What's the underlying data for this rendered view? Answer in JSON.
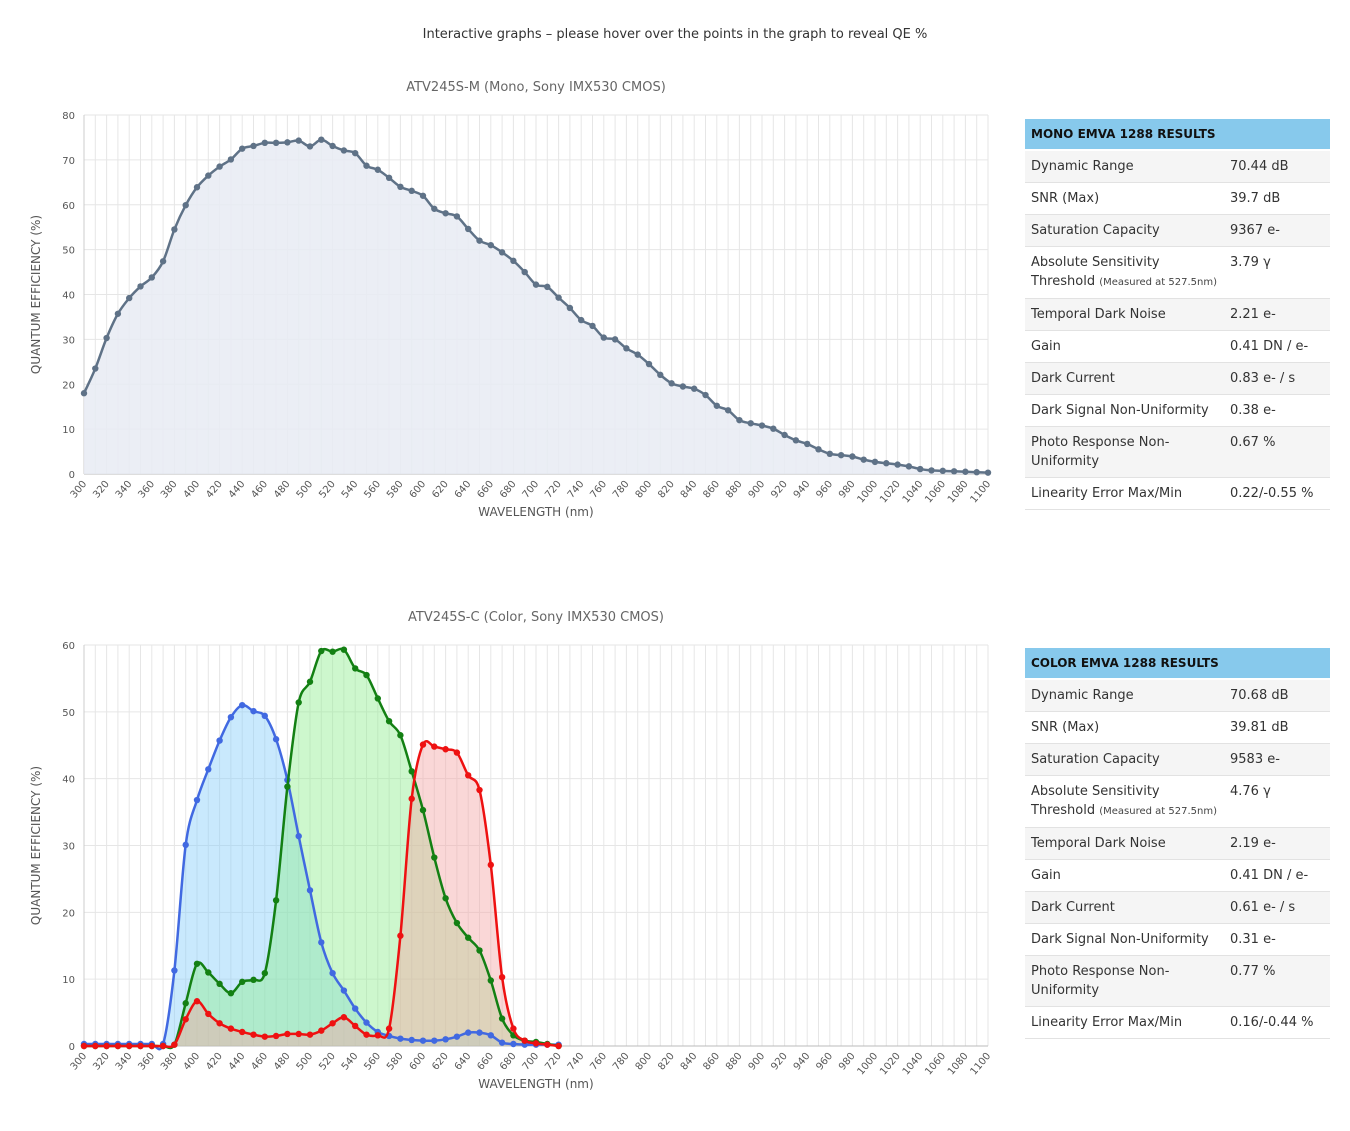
{
  "intro_text": "Interactive graphs – please hover over the points in the graph to reveal QE %",
  "chart_data": [
    {
      "type": "area",
      "title": "ATV245S-M (Mono, Sony IMX530 CMOS)",
      "xlabel": "WAVELENGTH (nm)",
      "ylabel": "QUANTUM EFFICIENCY (%)",
      "xlim": [
        300,
        1100
      ],
      "ylim": [
        0,
        80
      ],
      "yticks": [
        0,
        10,
        20,
        30,
        40,
        50,
        60,
        70,
        80
      ],
      "xticks": [
        "300",
        "320",
        "340",
        "360",
        "380",
        "400",
        "420",
        "440",
        "460",
        "480",
        "500",
        "520",
        "540",
        "560",
        "580",
        "600",
        "620",
        "640",
        "660",
        "680",
        "700",
        "720",
        "740",
        "760",
        "780",
        "800",
        "820",
        "840",
        "860",
        "880",
        "900",
        "920",
        "940",
        "960",
        "980",
        "1000",
        "1020",
        "1040",
        "1060",
        "1080",
        "1100"
      ],
      "grid": true,
      "series": [
        {
          "color": "#5f7287",
          "fill": "#e8ebf3",
          "x": [
            300,
            310,
            320,
            330,
            340,
            350,
            360,
            370,
            380,
            390,
            400,
            410,
            420,
            430,
            440,
            450,
            460,
            470,
            480,
            490,
            500,
            510,
            520,
            530,
            540,
            550,
            560,
            570,
            580,
            590,
            600,
            610,
            620,
            630,
            640,
            650,
            660,
            670,
            680,
            690,
            700,
            710,
            720,
            730,
            740,
            750,
            760,
            770,
            780,
            790,
            800,
            810,
            820,
            830,
            840,
            850,
            860,
            870,
            880,
            890,
            900,
            910,
            920,
            930,
            940,
            950,
            960,
            970,
            980,
            990,
            1000,
            1010,
            1020,
            1030,
            1040,
            1050,
            1060,
            1070,
            1080,
            1090,
            1100
          ],
          "values": [
            18,
            23.5,
            30.3,
            35.7,
            39.2,
            41.8,
            43.8,
            47.4,
            54.5,
            59.9,
            63.9,
            66.5,
            68.5,
            70.1,
            72.5,
            73.1,
            73.8,
            73.8,
            73.9,
            74.3,
            73,
            74.5,
            73.1,
            72.1,
            71.5,
            68.7,
            67.8,
            66,
            64,
            63.1,
            62,
            59.1,
            58.1,
            57.4,
            54.6,
            52,
            51,
            49.4,
            47.5,
            45,
            42.2,
            41.7,
            39.3,
            37,
            34.3,
            33,
            30.4,
            30,
            28,
            26.6,
            24.5,
            22.1,
            20.2,
            19.5,
            19,
            17.6,
            15.2,
            14.2,
            12,
            11.3,
            10.8,
            10.1,
            8.7,
            7.5,
            6.7,
            5.5,
            4.5,
            4.2,
            3.9,
            3.2,
            2.7,
            2.4,
            2.1,
            1.7,
            1.1,
            0.8,
            0.7,
            0.6,
            0.5,
            0.4,
            0.3
          ]
        }
      ]
    },
    {
      "type": "area",
      "title": "ATV245S-C (Color, Sony IMX530 CMOS)",
      "xlabel": "WAVELENGTH (nm)",
      "ylabel": "QUANTUM EFFICIENCY (%)",
      "xlim": [
        300,
        1100
      ],
      "ylim": [
        0,
        60
      ],
      "yticks": [
        0,
        10,
        20,
        30,
        40,
        50,
        60
      ],
      "xticks": [
        "300",
        "320",
        "340",
        "360",
        "380",
        "400",
        "420",
        "440",
        "460",
        "480",
        "500",
        "520",
        "540",
        "560",
        "580",
        "600",
        "620",
        "640",
        "660",
        "680",
        "700",
        "720",
        "740",
        "760",
        "780",
        "800",
        "820",
        "840",
        "860",
        "880",
        "900",
        "920",
        "940",
        "960",
        "980",
        "1000",
        "1020",
        "1040",
        "1060",
        "1080",
        "1100"
      ],
      "grid": true,
      "series": [
        {
          "color": "#4169e1",
          "fill": "#87cefa",
          "x": [
            300,
            310,
            320,
            330,
            340,
            350,
            360,
            370,
            380,
            390,
            400,
            410,
            420,
            430,
            440,
            450,
            460,
            470,
            480,
            490,
            500,
            510,
            520,
            530,
            540,
            550,
            560,
            570,
            580,
            590,
            600,
            610,
            620,
            630,
            640,
            650,
            660,
            670,
            680,
            690,
            700,
            710,
            720
          ],
          "values": [
            0.3,
            0.3,
            0.3,
            0.3,
            0.3,
            0.3,
            0.3,
            0.3,
            11.3,
            30.1,
            36.8,
            41.4,
            45.7,
            49.2,
            51,
            50.1,
            49.4,
            45.9,
            39.8,
            31.4,
            23.3,
            15.5,
            10.9,
            8.3,
            5.6,
            3.5,
            2.1,
            1.5,
            1.1,
            0.9,
            0.8,
            0.8,
            1,
            1.4,
            2,
            2,
            1.6,
            0.5,
            0.3,
            0.2,
            0.2,
            0.2,
            0.2
          ]
        },
        {
          "color": "#138013",
          "fill": "#90ee90",
          "x": [
            300,
            310,
            320,
            330,
            340,
            350,
            360,
            370,
            380,
            390,
            400,
            410,
            420,
            430,
            440,
            450,
            460,
            470,
            480,
            490,
            500,
            510,
            520,
            530,
            540,
            550,
            560,
            570,
            580,
            590,
            600,
            610,
            620,
            630,
            640,
            650,
            660,
            670,
            680,
            690,
            700,
            710,
            720
          ],
          "values": [
            0,
            0,
            0,
            0,
            0,
            0,
            0,
            0,
            0.2,
            6.4,
            12.3,
            11,
            9.3,
            7.9,
            9.6,
            9.9,
            10.9,
            21.8,
            38.8,
            51.4,
            54.5,
            59.1,
            59,
            59.3,
            56.5,
            55.5,
            52,
            48.6,
            46.5,
            41.1,
            35.3,
            28.2,
            22.1,
            18.4,
            16.2,
            14.3,
            9.8,
            4.1,
            1.6,
            0.8,
            0.6,
            0.3,
            0
          ]
        },
        {
          "color": "#ee1111",
          "fill": "#f4a6a6",
          "x": [
            300,
            310,
            320,
            330,
            340,
            350,
            360,
            370,
            380,
            390,
            400,
            410,
            420,
            430,
            440,
            450,
            460,
            470,
            480,
            490,
            500,
            510,
            520,
            530,
            540,
            550,
            560,
            570,
            580,
            590,
            600,
            610,
            620,
            630,
            640,
            650,
            660,
            670,
            680,
            690,
            700,
            710,
            720
          ],
          "values": [
            0,
            0,
            0,
            0,
            0,
            0,
            0,
            0,
            0.2,
            4,
            6.7,
            4.8,
            3.4,
            2.6,
            2.1,
            1.7,
            1.4,
            1.5,
            1.8,
            1.8,
            1.7,
            2.3,
            3.4,
            4.3,
            3,
            1.7,
            1.6,
            2.6,
            16.5,
            37,
            45.1,
            44.8,
            44.4,
            43.9,
            40.5,
            38.3,
            27.1,
            10.3,
            2.6,
            0.8,
            0.4,
            0.2,
            0
          ]
        }
      ]
    }
  ],
  "mono_results": {
    "heading": "MONO EMVA 1288 RESULTS",
    "rows": [
      {
        "label": "Dynamic Range",
        "note": "",
        "value": "70.44 dB"
      },
      {
        "label": "SNR (Max)",
        "note": "",
        "value": "39.7 dB"
      },
      {
        "label": "Saturation Capacity",
        "note": "",
        "value": "9367 e-"
      },
      {
        "label": "Absolute Sensitivity Threshold",
        "note": "(Measured at 527.5nm)",
        "value": "3.79 γ"
      },
      {
        "label": "Temporal Dark Noise",
        "note": "",
        "value": "2.21 e-"
      },
      {
        "label": "Gain",
        "note": "",
        "value": "0.41 DN / e-"
      },
      {
        "label": "Dark Current",
        "note": "",
        "value": "0.83 e- / s"
      },
      {
        "label": "Dark Signal Non-Uniformity",
        "note": "",
        "value": "0.38 e-"
      },
      {
        "label": "Photo Response Non-Uniformity",
        "note": "",
        "value": "0.67 %"
      },
      {
        "label": "Linearity Error Max/Min",
        "note": "",
        "value": "0.22/-0.55 %"
      }
    ]
  },
  "color_results": {
    "heading": "COLOR EMVA 1288 RESULTS",
    "rows": [
      {
        "label": "Dynamic Range",
        "note": "",
        "value": "70.68 dB"
      },
      {
        "label": "SNR (Max)",
        "note": "",
        "value": "39.81 dB"
      },
      {
        "label": "Saturation Capacity",
        "note": "",
        "value": "9583 e-"
      },
      {
        "label": "Absolute Sensitivity Threshold",
        "note": "(Measured at 527.5nm)",
        "value": "4.76 γ"
      },
      {
        "label": "Temporal Dark Noise",
        "note": "",
        "value": "2.19 e-"
      },
      {
        "label": "Gain",
        "note": "",
        "value": "0.41 DN / e-"
      },
      {
        "label": "Dark Current",
        "note": "",
        "value": "0.61 e- / s"
      },
      {
        "label": "Dark Signal Non-Uniformity",
        "note": "",
        "value": "0.31 e-"
      },
      {
        "label": "Photo Response Non-Uniformity",
        "note": "",
        "value": "0.77 %"
      },
      {
        "label": "Linearity Error Max/Min",
        "note": "",
        "value": "0.16/-0.44 %"
      }
    ]
  }
}
